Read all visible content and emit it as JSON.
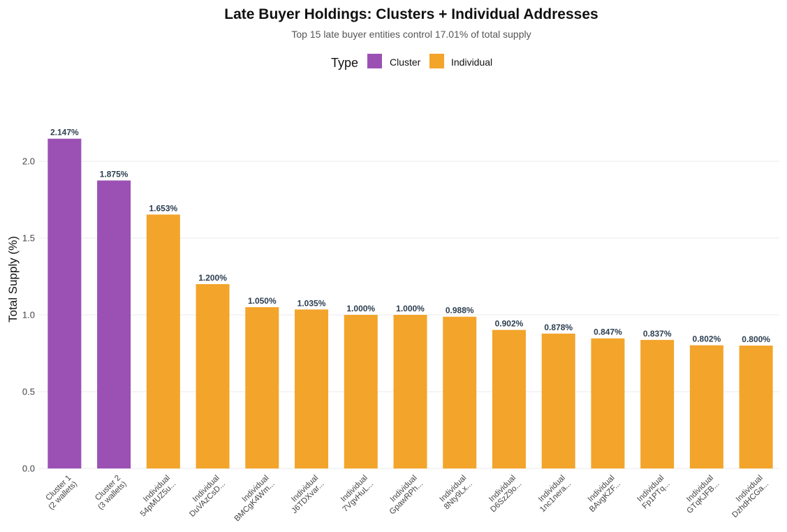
{
  "chart_data": {
    "type": "bar",
    "title": "Late Buyer Holdings: Clusters + Individual Addresses",
    "subtitle": "Top 15 late buyer entities control 17.01% of total supply",
    "xlabel": "",
    "ylabel": "Total Supply (%)",
    "ylim": [
      0,
      2.2
    ],
    "yticks": [
      "0.0",
      "0.5",
      "1.0",
      "1.5",
      "2.0"
    ],
    "grid": true,
    "legend": {
      "title": "Type",
      "position": "top",
      "entries": [
        {
          "name": "Cluster",
          "color": "#9b51b4"
        },
        {
          "name": "Individual",
          "color": "#f3a42a"
        }
      ]
    },
    "bars": [
      {
        "line1": "Cluster 1",
        "line2": "(2 wallets)",
        "type": "Cluster",
        "value": 2.147,
        "label": "2.147%"
      },
      {
        "line1": "Cluster 2",
        "line2": "(3 wallets)",
        "type": "Cluster",
        "value": 1.875,
        "label": "1.875%"
      },
      {
        "line1": "Individual",
        "line2": "54pMUZ5u...",
        "type": "Individual",
        "value": 1.653,
        "label": "1.653%"
      },
      {
        "line1": "Individual",
        "line2": "DuVAzCsD...",
        "type": "Individual",
        "value": 1.2,
        "label": "1.200%"
      },
      {
        "line1": "Individual",
        "line2": "BMCgK4Wm...",
        "type": "Individual",
        "value": 1.05,
        "label": "1.050%"
      },
      {
        "line1": "Individual",
        "line2": "J6TDXvar...",
        "type": "Individual",
        "value": 1.035,
        "label": "1.035%"
      },
      {
        "line1": "Individual",
        "line2": "7VgvHuL...",
        "type": "Individual",
        "value": 1.0,
        "label": "1.000%"
      },
      {
        "line1": "Individual",
        "line2": "GpawRPh...",
        "type": "Individual",
        "value": 1.0,
        "label": "1.000%"
      },
      {
        "line1": "Individual",
        "line2": "8Nty9Lx...",
        "type": "Individual",
        "value": 0.988,
        "label": "0.988%"
      },
      {
        "line1": "Individual",
        "line2": "D6SzZ9o...",
        "type": "Individual",
        "value": 0.902,
        "label": "0.902%"
      },
      {
        "line1": "Individual",
        "line2": "1nc1nera...",
        "type": "Individual",
        "value": 0.878,
        "label": "0.878%"
      },
      {
        "line1": "Individual",
        "line2": "BAvgKZF...",
        "type": "Individual",
        "value": 0.847,
        "label": "0.847%"
      },
      {
        "line1": "Individual",
        "line2": "Fp1PTq...",
        "type": "Individual",
        "value": 0.837,
        "label": "0.837%"
      },
      {
        "line1": "Individual",
        "line2": "GTqKJFB...",
        "type": "Individual",
        "value": 0.802,
        "label": "0.802%"
      },
      {
        "line1": "Individual",
        "line2": "DzhdHCGa...",
        "type": "Individual",
        "value": 0.8,
        "label": "0.800%"
      }
    ]
  }
}
